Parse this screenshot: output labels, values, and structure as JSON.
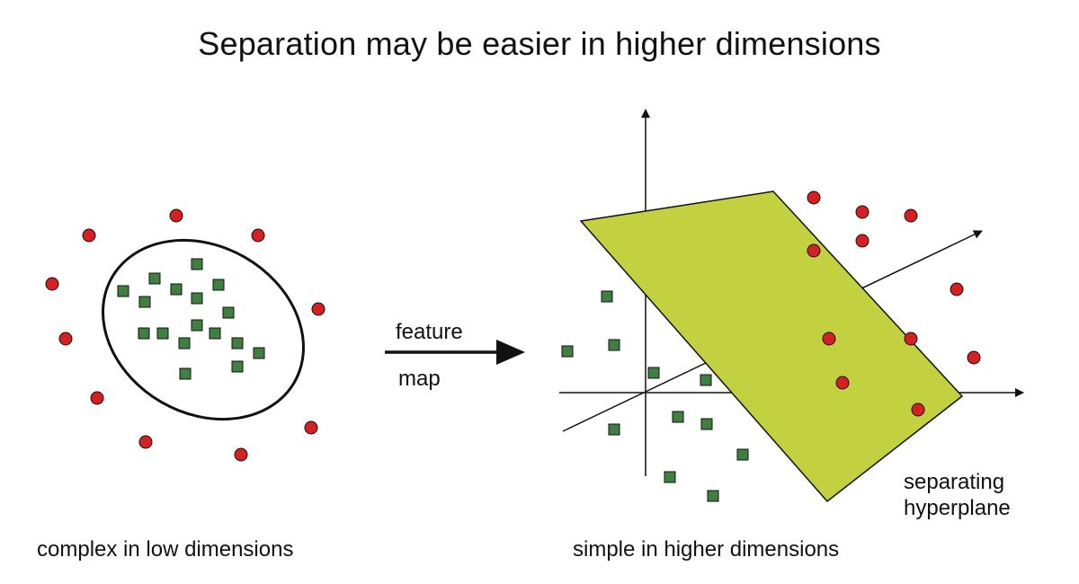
{
  "title": "Separation may be easier in higher dimensions",
  "arrow_label": {
    "line1": "feature",
    "line2": "map"
  },
  "left_panel": {
    "caption": "complex in low dimensions"
  },
  "right_panel": {
    "caption": "simple in higher dimensions",
    "plane_label": {
      "line1": "separating",
      "line2": "hyperplane"
    }
  },
  "colors": {
    "circle_point": "#d42020",
    "square_point": "#3f7f3f",
    "plane_fill": "#c3d140",
    "outline": "#111111"
  }
}
